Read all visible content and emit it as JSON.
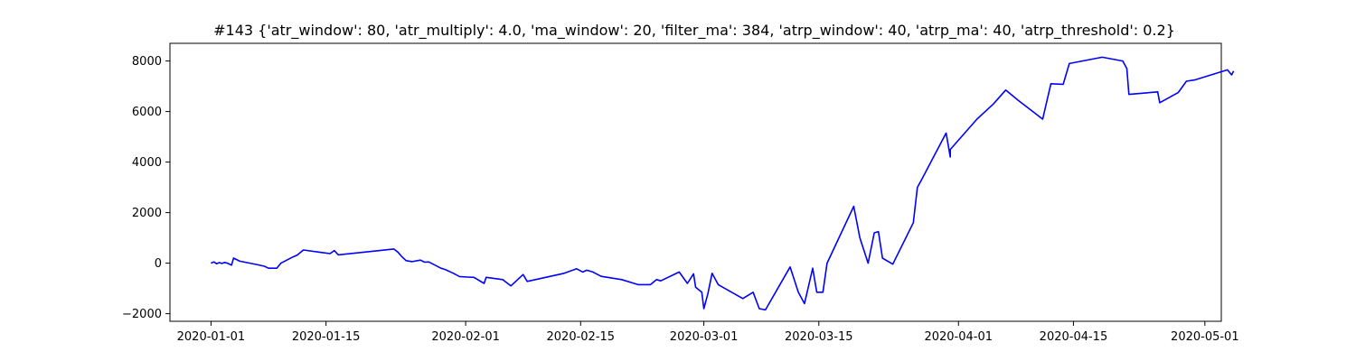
{
  "chart_data": {
    "type": "line",
    "title": "#143 {'atr_window': 80, 'atr_multiply': 4.0, 'ma_window': 20, 'filter_ma': 384, 'atrp_window': 40, 'atrp_ma': 40, 'atrp_threshold': 0.2}",
    "xlabel": "",
    "ylabel": "",
    "xlim": [
      "2019-12-27",
      "2020-05-03"
    ],
    "ylim": [
      -2300,
      8700
    ],
    "x_ticks": [
      "2020-01-01",
      "2020-01-15",
      "2020-02-01",
      "2020-02-15",
      "2020-03-01",
      "2020-03-15",
      "2020-04-01",
      "2020-04-15",
      "2020-05-01"
    ],
    "y_ticks": [
      -2000,
      0,
      2000,
      4000,
      6000,
      8000
    ],
    "grid": false,
    "line_color": "#0000ff",
    "series": [
      {
        "points": [
          [
            "2020-01-01T00:00",
            0
          ],
          [
            "2020-01-01T08:00",
            50
          ],
          [
            "2020-01-01T16:00",
            -20
          ],
          [
            "2020-01-02T00:00",
            20
          ],
          [
            "2020-01-02T08:00",
            -10
          ],
          [
            "2020-01-02T16:00",
            30
          ],
          [
            "2020-01-03T00:00",
            0
          ],
          [
            "2020-01-03T12:00",
            -80
          ],
          [
            "2020-01-03T18:00",
            200
          ],
          [
            "2020-01-04T12:00",
            80
          ],
          [
            "2020-01-06T12:00",
            -50
          ],
          [
            "2020-01-07T12:00",
            -120
          ],
          [
            "2020-01-08T00:00",
            -200
          ],
          [
            "2020-01-09T00:00",
            -200
          ],
          [
            "2020-01-09T12:00",
            0
          ],
          [
            "2020-01-11T00:00",
            250
          ],
          [
            "2020-01-11T12:00",
            320
          ],
          [
            "2020-01-12T06:00",
            520
          ],
          [
            "2020-01-14T12:00",
            420
          ],
          [
            "2020-01-15T12:00",
            380
          ],
          [
            "2020-01-16T00:00",
            500
          ],
          [
            "2020-01-16T12:00",
            330
          ],
          [
            "2020-01-23T06:00",
            560
          ],
          [
            "2020-01-23T18:00",
            440
          ],
          [
            "2020-01-24T06:00",
            250
          ],
          [
            "2020-01-24T18:00",
            100
          ],
          [
            "2020-01-25T12:00",
            60
          ],
          [
            "2020-01-26T12:00",
            120
          ],
          [
            "2020-01-27T00:00",
            40
          ],
          [
            "2020-01-27T12:00",
            50
          ],
          [
            "2020-01-29T00:00",
            -200
          ],
          [
            "2020-01-29T12:00",
            -250
          ],
          [
            "2020-01-30T12:00",
            -400
          ],
          [
            "2020-01-31T06:00",
            -530
          ],
          [
            "2020-02-01T06:00",
            -550
          ],
          [
            "2020-02-02T00:00",
            -560
          ],
          [
            "2020-02-03T06:00",
            -800
          ],
          [
            "2020-02-03T12:00",
            -560
          ],
          [
            "2020-02-05T12:00",
            -650
          ],
          [
            "2020-02-06T12:00",
            -900
          ],
          [
            "2020-02-08T00:00",
            -450
          ],
          [
            "2020-02-08T12:00",
            -720
          ],
          [
            "2020-02-09T12:00",
            -650
          ],
          [
            "2020-02-13T00:00",
            -400
          ],
          [
            "2020-02-14T12:00",
            -220
          ],
          [
            "2020-02-15T06:00",
            -350
          ],
          [
            "2020-02-15T18:00",
            -280
          ],
          [
            "2020-02-16T12:00",
            -350
          ],
          [
            "2020-02-17T12:00",
            -520
          ],
          [
            "2020-02-20T00:00",
            -650
          ],
          [
            "2020-02-21T12:00",
            -800
          ],
          [
            "2020-02-22T00:00",
            -850
          ],
          [
            "2020-02-23T12:00",
            -850
          ],
          [
            "2020-02-24T06:00",
            -650
          ],
          [
            "2020-02-24T18:00",
            -700
          ],
          [
            "2020-02-27T00:00",
            -350
          ],
          [
            "2020-02-28T00:00",
            -800
          ],
          [
            "2020-02-28T18:00",
            -420
          ],
          [
            "2020-02-29T00:00",
            -950
          ],
          [
            "2020-02-29T18:00",
            -1150
          ],
          [
            "2020-03-01T00:00",
            -1800
          ],
          [
            "2020-03-01T12:00",
            -1200
          ],
          [
            "2020-03-02T00:00",
            -400
          ],
          [
            "2020-03-02T18:00",
            -850
          ],
          [
            "2020-03-05T18:00",
            -1400
          ],
          [
            "2020-03-07T00:00",
            -1150
          ],
          [
            "2020-03-07T18:00",
            -1800
          ],
          [
            "2020-03-08T12:00",
            -1850
          ],
          [
            "2020-03-11T12:00",
            -150
          ],
          [
            "2020-03-12T12:00",
            -1150
          ],
          [
            "2020-03-13T06:00",
            -1600
          ],
          [
            "2020-03-14T06:00",
            -200
          ],
          [
            "2020-03-14T18:00",
            -1150
          ],
          [
            "2020-03-15T12:00",
            -1150
          ],
          [
            "2020-03-16T00:00",
            0
          ],
          [
            "2020-03-19T06:00",
            2250
          ],
          [
            "2020-03-20T00:00",
            1000
          ],
          [
            "2020-03-21T00:00",
            0
          ],
          [
            "2020-03-21T18:00",
            1200
          ],
          [
            "2020-03-22T06:00",
            1250
          ],
          [
            "2020-03-22T18:00",
            200
          ],
          [
            "2020-03-24T00:00",
            -40
          ],
          [
            "2020-03-26T12:00",
            1600
          ],
          [
            "2020-03-27T00:00",
            3000
          ],
          [
            "2020-03-27T12:00",
            3300
          ],
          [
            "2020-03-30T12:00",
            5150
          ],
          [
            "2020-03-31T00:00",
            4200
          ],
          [
            "2020-03-31T00:00",
            4500
          ],
          [
            "2020-04-03T06:00",
            5700
          ],
          [
            "2020-04-05T06:00",
            6300
          ],
          [
            "2020-04-06T18:00",
            6850
          ],
          [
            "2020-04-08T06:00",
            6450
          ],
          [
            "2020-04-11T06:00",
            5700
          ],
          [
            "2020-04-12T06:00",
            7100
          ],
          [
            "2020-04-13T18:00",
            7080
          ],
          [
            "2020-04-14T12:00",
            7900
          ],
          [
            "2020-04-18T12:00",
            8150
          ],
          [
            "2020-04-21T00:00",
            8000
          ],
          [
            "2020-04-21T12:00",
            7700
          ],
          [
            "2020-04-21T18:00",
            6680
          ],
          [
            "2020-04-25T06:00",
            6780
          ],
          [
            "2020-04-25T12:00",
            6350
          ],
          [
            "2020-04-27T18:00",
            6750
          ],
          [
            "2020-04-28T18:00",
            7200
          ],
          [
            "2020-04-29T18:00",
            7250
          ],
          [
            "2020-05-03T18:00",
            7650
          ],
          [
            "2020-05-04T06:00",
            7450
          ],
          [
            "2020-05-04T12:00",
            7600
          ]
        ]
      }
    ]
  }
}
